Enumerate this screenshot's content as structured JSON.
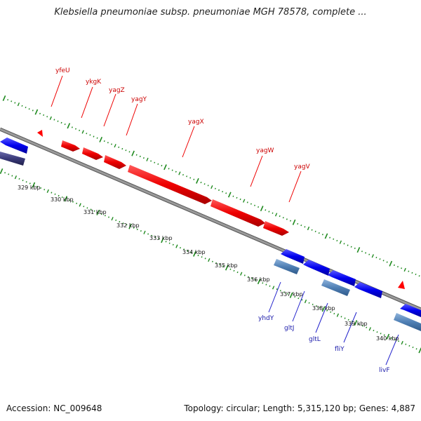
{
  "title": "Klebsiella pneumoniae subsp. pneumoniae MGH 78578, complete ...",
  "footer": {
    "accession": "Accession: NC_009648",
    "summary": "Topology: circular; Length: 5,315,120 bp; Genes: 4,887"
  },
  "colors": {
    "forward_gene": "#ff0000",
    "reverse_gene": "#0000ee",
    "reverse_gene_alt": "#4f7fb4",
    "backbone": "#808080",
    "ticks": "#1f8a1f",
    "forward_label": "#cc0000",
    "reverse_label": "#1a1aaa"
  },
  "scale_labels": [
    "329 kbp",
    "330 kbp",
    "331 kbp",
    "332 kbp",
    "333 kbp",
    "334 kbp",
    "335 kbp",
    "336 kbp",
    "337 kbp",
    "338 kbp",
    "339 kbp",
    "340 kbp"
  ],
  "forward_gene_labels": [
    "yfeU",
    "ykgK",
    "yagZ",
    "yagY",
    "yagX",
    "yagW",
    "yagV"
  ],
  "reverse_gene_labels": [
    "yhdY",
    "gltJ",
    "gltL",
    "fliY",
    "livF"
  ]
}
